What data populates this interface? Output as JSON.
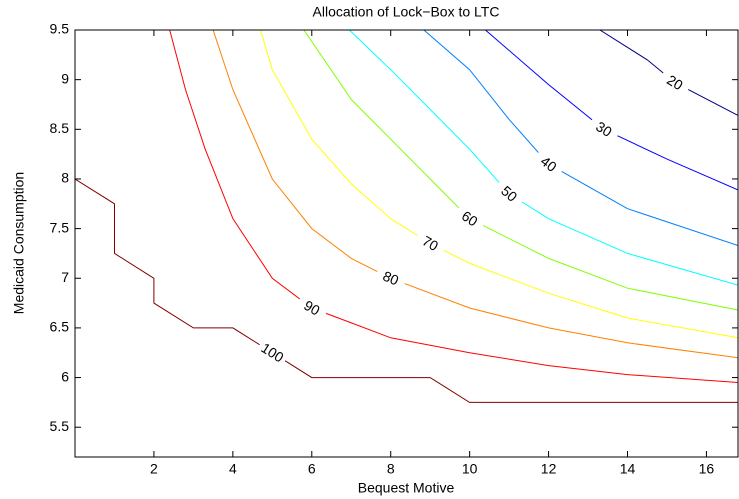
{
  "chart_data": {
    "type": "contour",
    "title": "Allocation of Lock−Box to LTC",
    "x_label": "Bequest Motive",
    "y_label": "Medicaid Consumption",
    "xlim": [
      0,
      16.8
    ],
    "ylim": [
      5.2,
      9.5
    ],
    "xticks": [
      2,
      4,
      6,
      8,
      10,
      12,
      14,
      16
    ],
    "yticks": [
      5.5,
      6,
      6.5,
      7,
      7.5,
      8,
      8.5,
      9,
      9.5
    ],
    "contours": [
      {
        "level": 100,
        "color": "#800000",
        "x": [
          0,
          1,
          1,
          2,
          2,
          3,
          4,
          5,
          6,
          9,
          10,
          16.8
        ],
        "y": [
          8,
          7.75,
          7.25,
          7,
          6.75,
          6.5,
          6.5,
          6.25,
          6,
          6,
          5.75,
          5.75
        ]
      },
      {
        "level": 90,
        "color": "#ff0000",
        "x": [
          2.4,
          2.8,
          3.3,
          4,
          5,
          6,
          7,
          8,
          10,
          12,
          14,
          16.8
        ],
        "y": [
          9.5,
          8.9,
          8.3,
          7.6,
          7.0,
          6.7,
          6.55,
          6.4,
          6.25,
          6.12,
          6.03,
          5.95
        ]
      },
      {
        "level": 80,
        "color": "#ff8000",
        "x": [
          3.5,
          4,
          5,
          6,
          7,
          8,
          10,
          12,
          14,
          16.8
        ],
        "y": [
          9.5,
          8.9,
          8.0,
          7.5,
          7.2,
          7.0,
          6.7,
          6.5,
          6.35,
          6.2
        ]
      },
      {
        "level": 70,
        "color": "#ffff00",
        "x": [
          4.7,
          5,
          6,
          7,
          8,
          9,
          10,
          12,
          14,
          16.8
        ],
        "y": [
          9.5,
          9.1,
          8.4,
          7.95,
          7.6,
          7.35,
          7.15,
          6.85,
          6.6,
          6.4
        ]
      },
      {
        "level": 60,
        "color": "#80ff00",
        "x": [
          5.8,
          7,
          8,
          9,
          10,
          12,
          14,
          16.8
        ],
        "y": [
          9.5,
          8.8,
          8.4,
          8.0,
          7.6,
          7.2,
          6.9,
          6.68
        ]
      },
      {
        "level": 50,
        "color": "#00ffff",
        "x": [
          6.95,
          8,
          9,
          10,
          11,
          12,
          14,
          16.8
        ],
        "y": [
          9.5,
          9.1,
          8.7,
          8.3,
          7.85,
          7.6,
          7.25,
          6.93
        ]
      },
      {
        "level": 40,
        "color": "#0080ff",
        "x": [
          8.84,
          10,
          11,
          12,
          14,
          16.8
        ],
        "y": [
          9.5,
          9.1,
          8.6,
          8.15,
          7.7,
          7.33
        ]
      },
      {
        "level": 30,
        "color": "#0000ff",
        "x": [
          10.4,
          12,
          13.4,
          15,
          16.8
        ],
        "y": [
          9.5,
          8.95,
          8.5,
          8.2,
          7.89
        ]
      },
      {
        "level": 20,
        "color": "#000080",
        "x": [
          13.3,
          14.5,
          15.2,
          16.8
        ],
        "y": [
          9.5,
          9.2,
          8.97,
          8.64
        ]
      }
    ]
  }
}
